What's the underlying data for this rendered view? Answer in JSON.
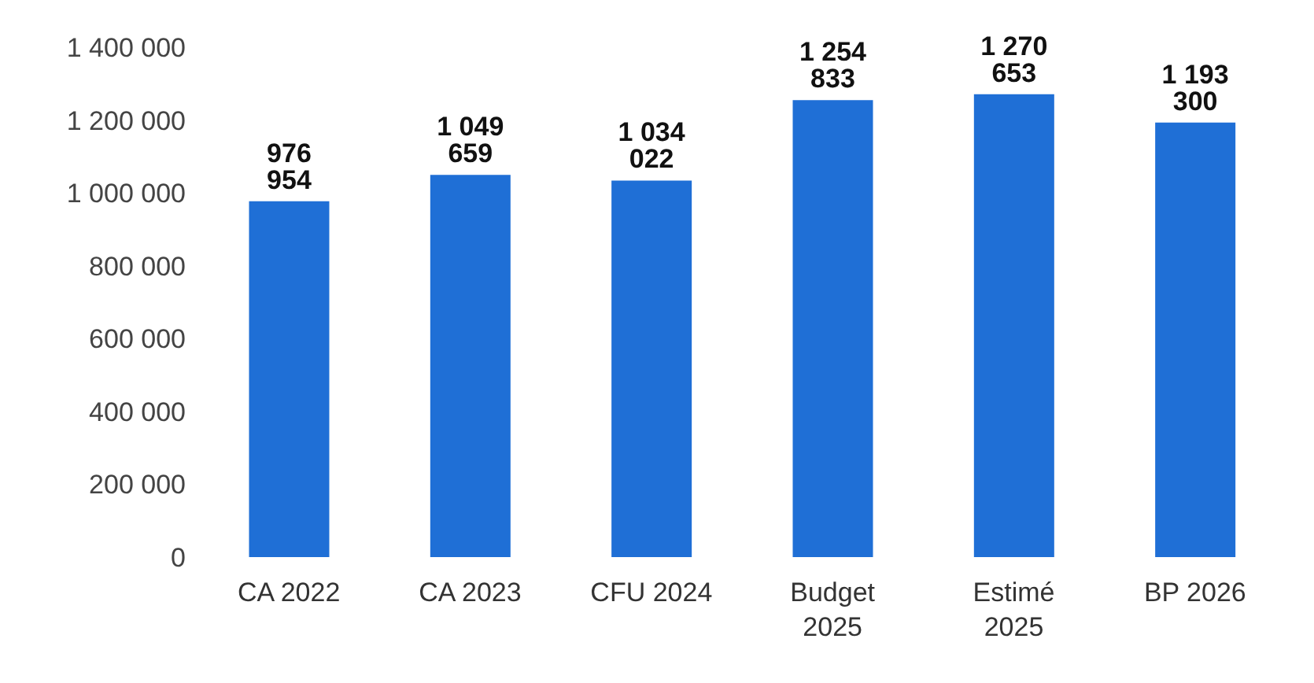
{
  "chart_data": {
    "type": "bar",
    "categories": [
      "CA 2022",
      "CA 2023",
      "CFU 2024",
      "Budget 2025",
      "Estimé 2025",
      "BP 2026"
    ],
    "values": [
      976954,
      1049659,
      1034022,
      1254833,
      1270653,
      1193300
    ],
    "value_labels": [
      "976 954",
      "1 049 659",
      "1 034 022",
      "1 254 833",
      "1 270 653",
      "1 193 300"
    ],
    "color": "#1f6fd6",
    "ylim": [
      0,
      1400000
    ],
    "yticks": [
      0,
      {
        "value": 200000,
        "label": "200 000"
      },
      {
        "value": 400000,
        "label": "400 000"
      },
      {
        "value": 600000,
        "label": "600 000"
      },
      {
        "value": 800000,
        "label": "800 000"
      },
      {
        "value": 1000000,
        "label": "1 000 000"
      },
      {
        "value": 1200000,
        "label": "1 200 000"
      },
      {
        "value": 1400000,
        "label": "1 400 000"
      }
    ],
    "grid": false,
    "legend": false
  }
}
